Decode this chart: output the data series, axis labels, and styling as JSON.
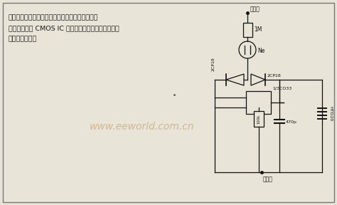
{
  "bg_color": "#e8e4d8",
  "border_color": "#888888",
  "text_color": "#1a1a1a",
  "watermark": "www.eeworld.com.cn",
  "watermark_color": "#c8a87a",
  "chinese_text_lines": [
    "在测量市电时，通过电阵和氖管的微弱电流，使氖",
    "管发光，又使 CMOS IC 组成的振荡电路启振，压电陶",
    "瓷片发出声音。"
  ],
  "label_xianxian": "相线端",
  "label_1M": "1M",
  "label_Ne": "Ne",
  "label_2CP18_left": "2CP18",
  "label_2CP18_right": "2CP18",
  "label_IC": "1/3CO33",
  "label_100k": "100k",
  "label_470p": "470p",
  "label_piezo": "HTD20",
  "label_ground": "手触履",
  "line_color": "#111111",
  "lw": 0.9
}
